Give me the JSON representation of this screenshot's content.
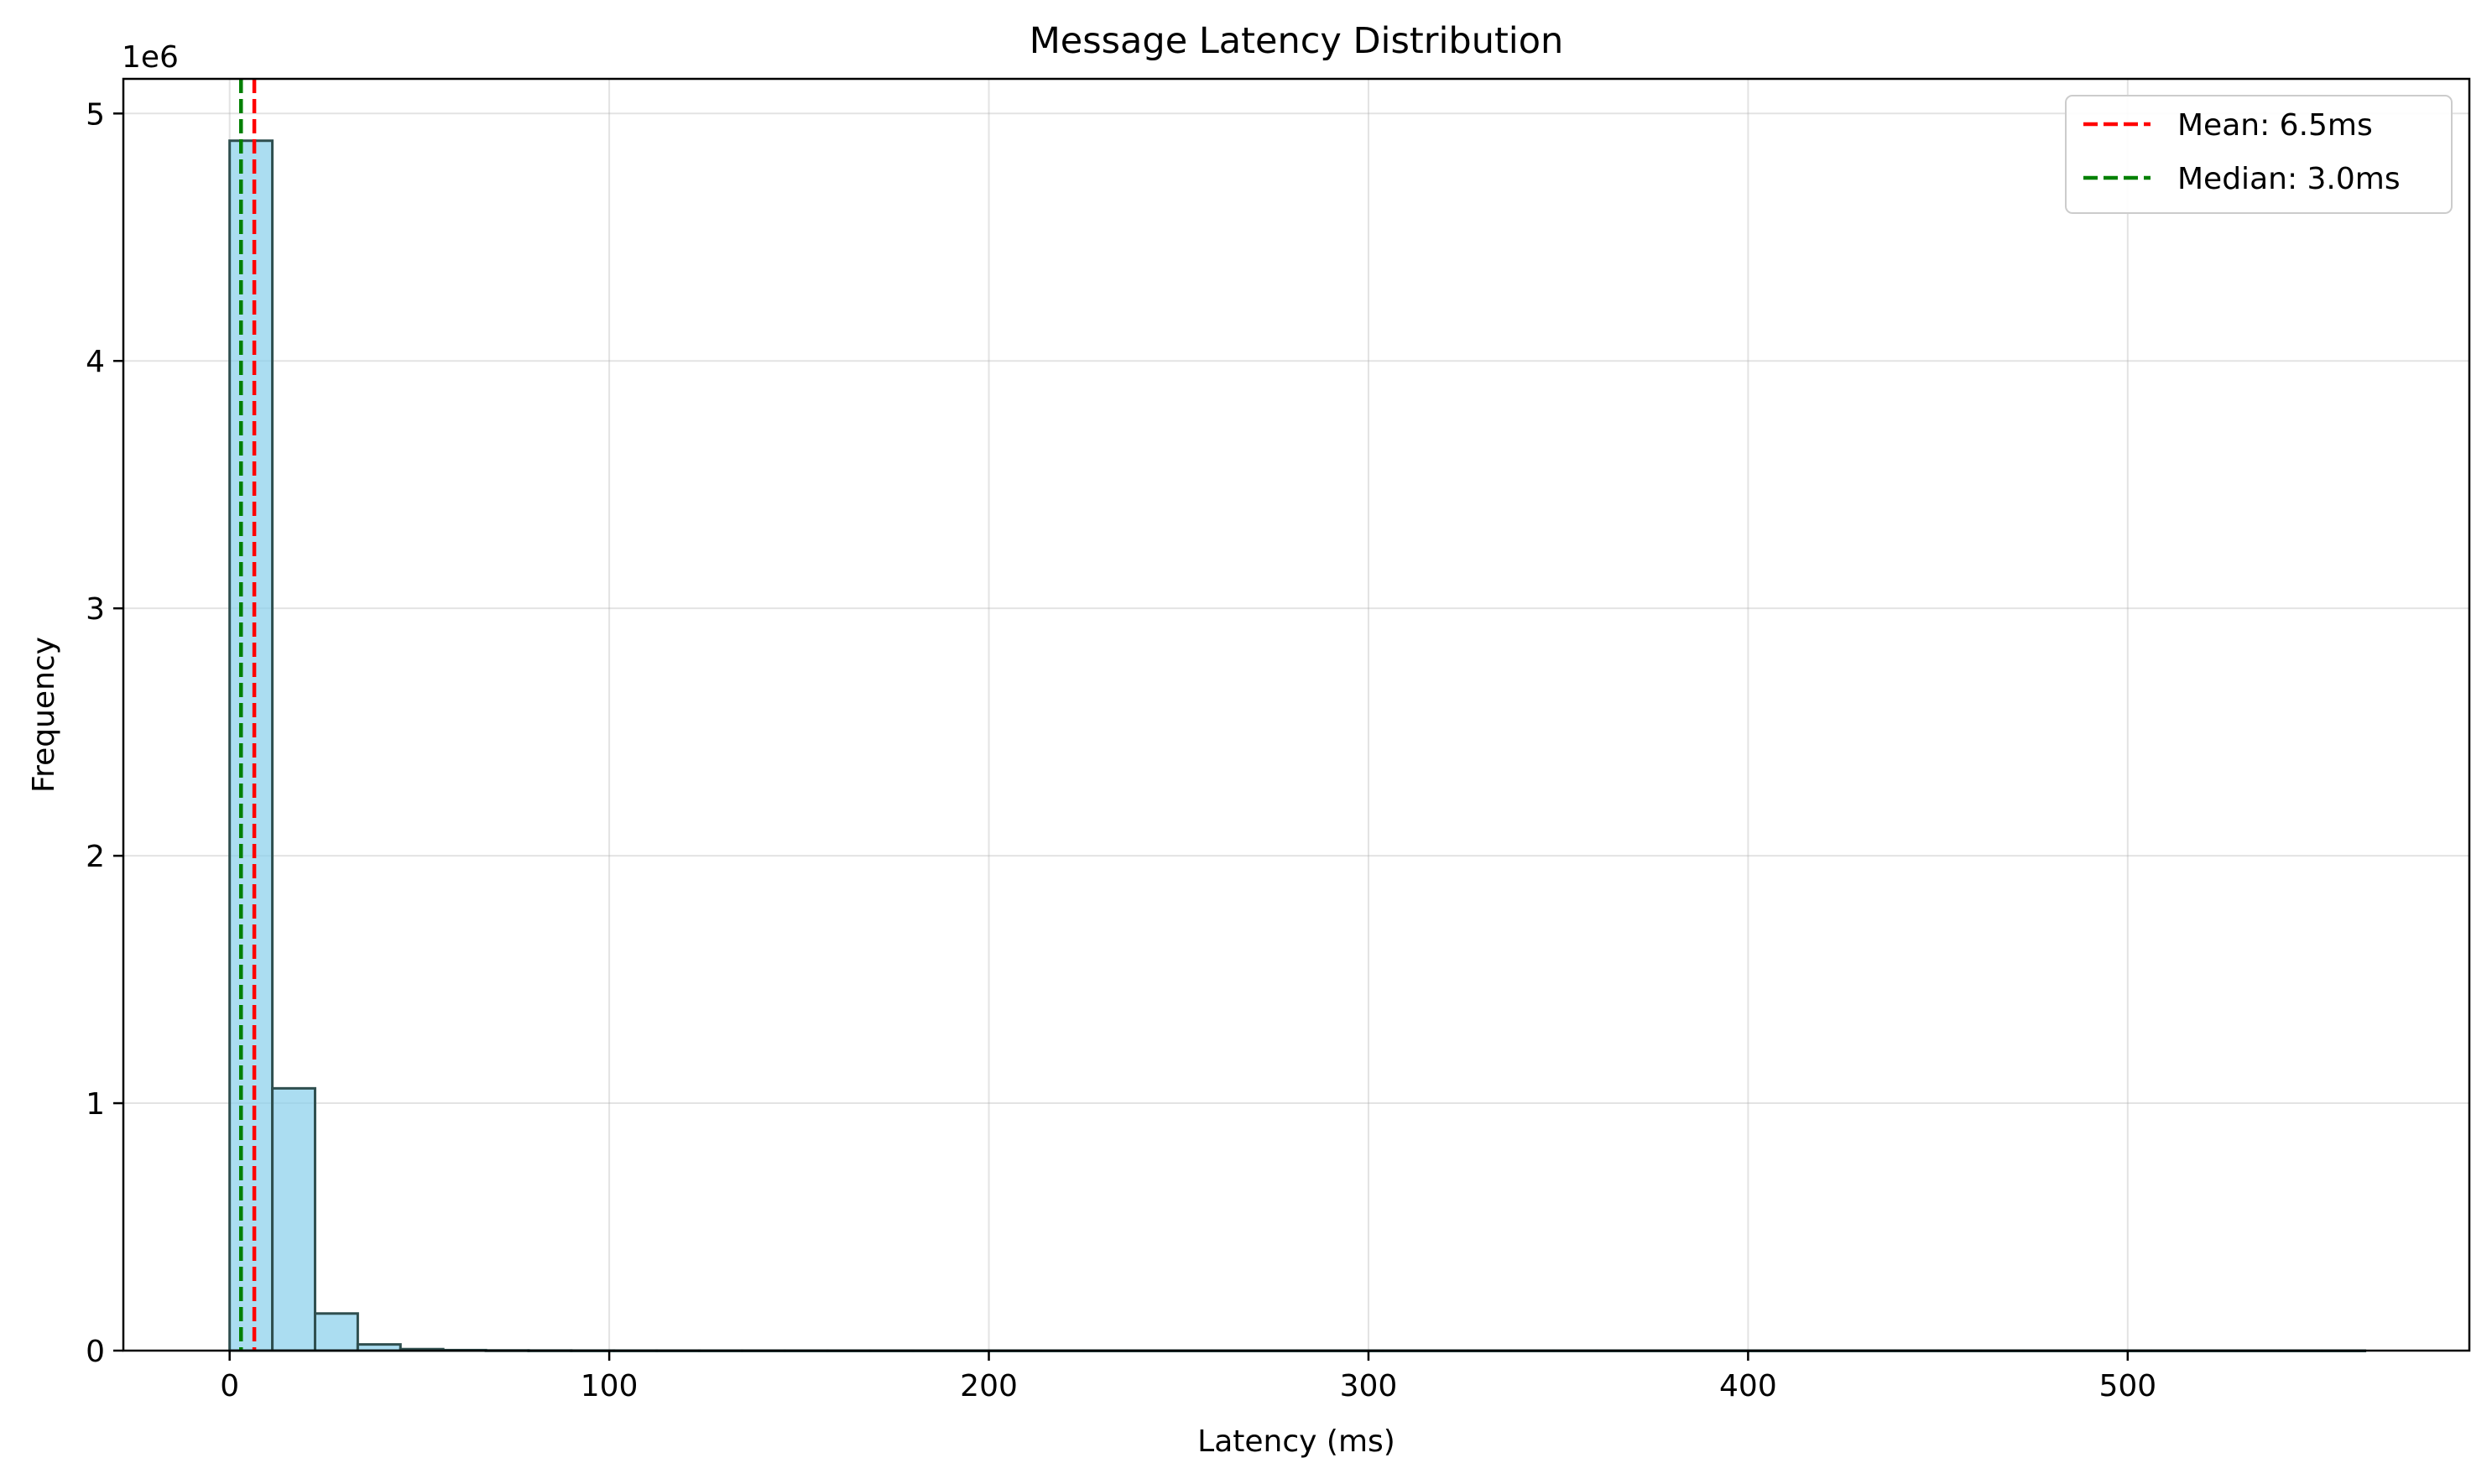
{
  "chart_data": {
    "type": "bar",
    "title": "Message Latency Distribution",
    "xlabel": "Latency (ms)",
    "ylabel": "Frequency",
    "y_offset_label": "1e6",
    "xlim": [
      -28,
      590
    ],
    "ylim": [
      0,
      5.14
    ],
    "xticks": [
      0,
      100,
      200,
      300,
      400,
      500
    ],
    "yticks": [
      0,
      1,
      2,
      3,
      4,
      5
    ],
    "grid": true,
    "legend_position": "top-right",
    "bin_start": 0.0,
    "bin_width": 11.25,
    "values": [
      4.89,
      1.06,
      0.15,
      0.025,
      0.006,
      0.002,
      0.0008,
      0.0004,
      0.0002,
      0.0001,
      8e-05,
      6e-05,
      5e-05,
      4e-05,
      3e-05,
      3e-05,
      2e-05,
      2e-05,
      2e-05,
      1e-05,
      1e-05,
      1e-05,
      1e-05,
      1e-05,
      1e-05,
      1e-05,
      1e-05,
      1e-05,
      1e-05,
      1e-05,
      1e-05,
      1e-05,
      1e-05,
      1e-05,
      1e-05,
      1e-05,
      1e-05,
      1e-05,
      1e-05,
      1e-05,
      1e-05,
      1e-05,
      1e-05,
      1e-05,
      1e-05,
      1e-05,
      1e-05,
      1e-05,
      1e-05,
      1e-05
    ],
    "bar_fill": "#87ceeb",
    "bar_edge": "#2f4f4f",
    "reference_lines": [
      {
        "label": "Mean: 6.5ms",
        "x": 6.5,
        "color": "#ff0000"
      },
      {
        "label": "Median: 3.0ms",
        "x": 3.0,
        "color": "#008000"
      }
    ]
  }
}
